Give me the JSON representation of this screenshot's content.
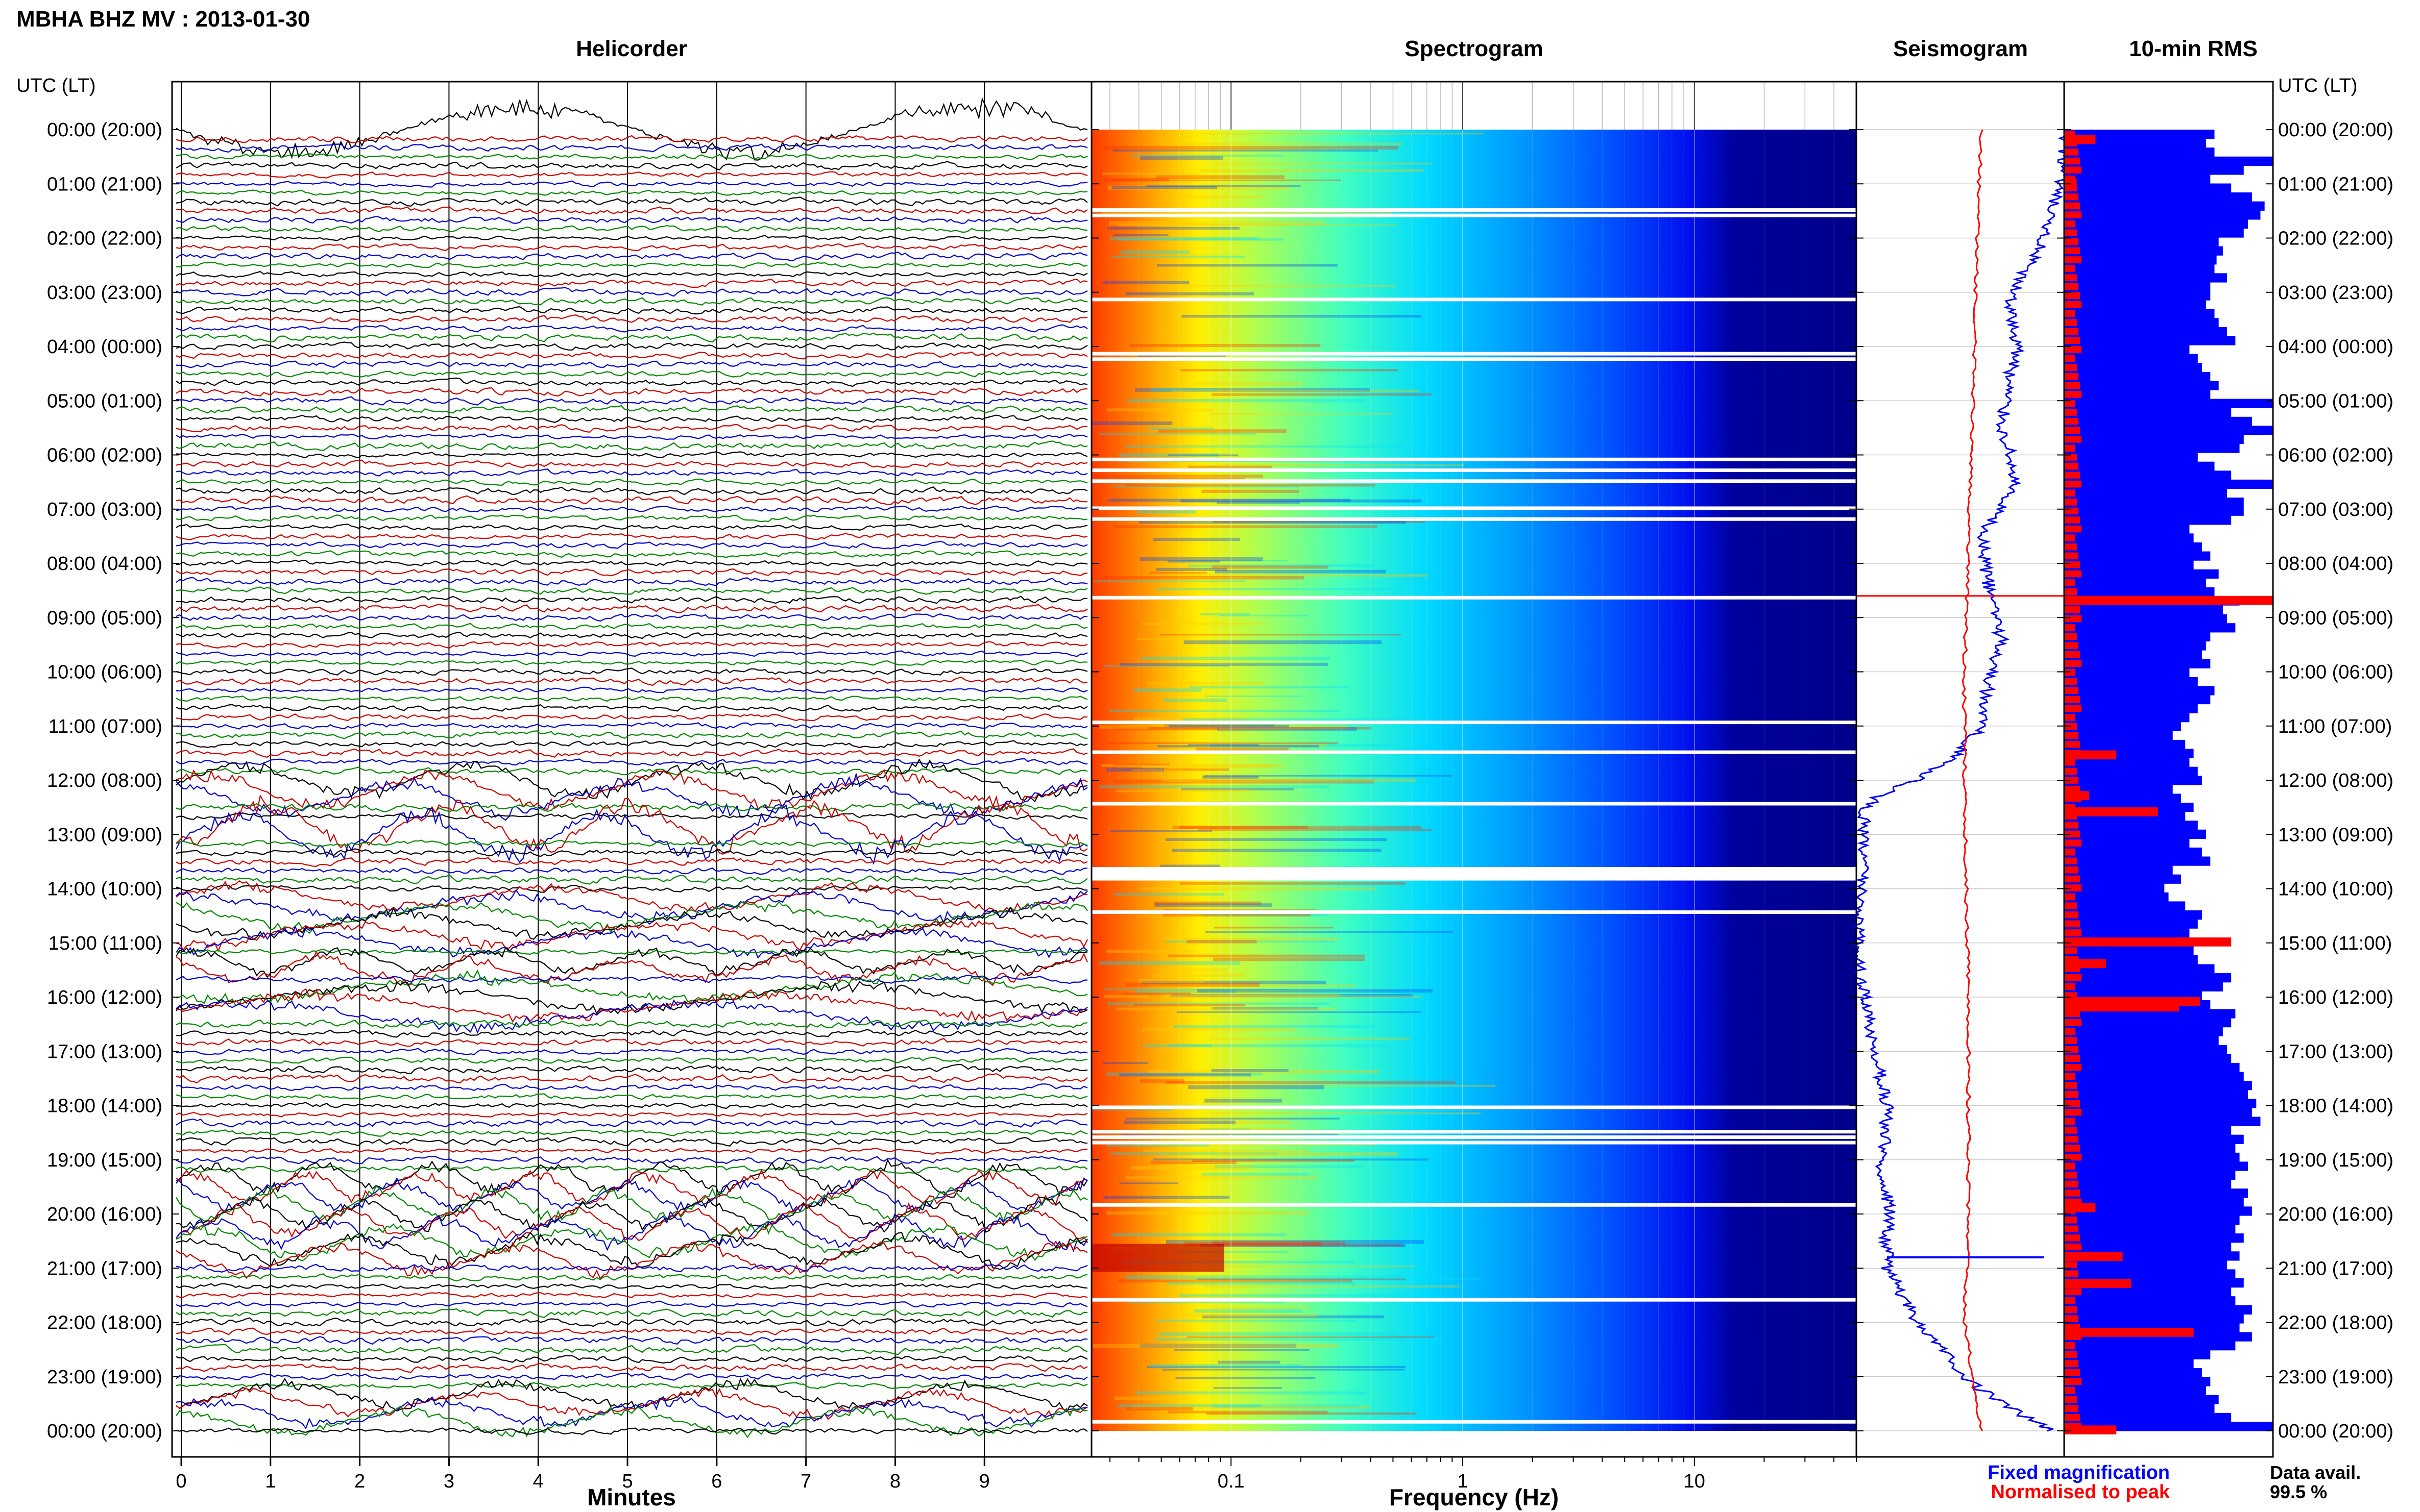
{
  "title": "MBHA BHZ MV : 2013-01-30",
  "panels": {
    "helicorder": "Helicorder",
    "spectrogram": "Spectrogram",
    "seismogram": "Seismogram",
    "rms": "10-min RMS"
  },
  "axis_title_left": "UTC (LT)",
  "axis_title_right": "UTC (LT)",
  "time_labels": [
    "00:00 (20:00)",
    "01:00 (21:00)",
    "02:00 (22:00)",
    "03:00 (23:00)",
    "04:00 (00:00)",
    "05:00 (01:00)",
    "06:00 (02:00)",
    "07:00 (03:00)",
    "08:00 (04:00)",
    "09:00 (05:00)",
    "10:00 (06:00)",
    "11:00 (07:00)",
    "12:00 (08:00)",
    "13:00 (09:00)",
    "14:00 (10:00)",
    "15:00 (11:00)",
    "16:00 (12:00)",
    "17:00 (13:00)",
    "18:00 (14:00)",
    "19:00 (15:00)",
    "20:00 (16:00)",
    "21:00 (17:00)",
    "22:00 (18:00)",
    "23:00 (19:00)",
    "00:00 (20:00)"
  ],
  "helicorder_xlabel": "Minutes",
  "spectrogram_xlabel": "Frequency (Hz)",
  "legend": {
    "fixed": "Fixed magnification",
    "normalised": "Normalised to peak",
    "avail_label": "Data avail.",
    "avail_value": "99.5 %"
  },
  "colors": {
    "trace_cycle": [
      "#000000",
      "#cc0000",
      "#0000cc",
      "#008800"
    ],
    "fixed": "#0000ff",
    "normalised": "#ff0000",
    "spec_background": "#00007f"
  },
  "chart_data": [
    {
      "type": "line",
      "name": "helicorder",
      "title": "Helicorder",
      "xlabel": "Minutes",
      "x_ticks": [
        0,
        1,
        2,
        3,
        4,
        5,
        6,
        7,
        8,
        9
      ],
      "xlim": [
        0,
        10
      ],
      "rows_per_hour": 6,
      "hours": 24,
      "notable_events_utc": [
        "00:10",
        "12:00",
        "13:00",
        "14:40",
        "15:20",
        "16:20",
        "20:00",
        "20:40",
        "23:40"
      ]
    },
    {
      "type": "heatmap",
      "name": "spectrogram",
      "title": "Spectrogram",
      "xlabel": "Frequency (Hz)",
      "x_scale": "log",
      "x_ticks": [
        0.1,
        1,
        10
      ],
      "xlim": [
        0.025,
        50
      ],
      "gaps_utc_hours": [
        1.45,
        1.55,
        3.1,
        4.1,
        4.2,
        6.05,
        6.25,
        6.45,
        6.95,
        7.15,
        8.6,
        10.9,
        11.45,
        12.4,
        13.6,
        13.75,
        14.4,
        18.0,
        18.45,
        18.55,
        18.65,
        19.8,
        21.55,
        23.8
      ],
      "gap_large_utc": [
        13.6,
        13.85
      ]
    },
    {
      "type": "line",
      "name": "seismogram",
      "title": "Seismogram",
      "series": [
        {
          "name": "Fixed magnification",
          "color": "#0000ff",
          "times_h": [
            0,
            0.5,
            1,
            1.3,
            1.6,
            2,
            2.3,
            2.6,
            3,
            3.5,
            4,
            4.5,
            5,
            5.5,
            6,
            6.5,
            7,
            7.5,
            8,
            8.5,
            9,
            9.5,
            10,
            10.5,
            11,
            11.5,
            12,
            12.3,
            12.6,
            13,
            13.5,
            14,
            14.5,
            15,
            15.5,
            16,
            16.5,
            17,
            17.5,
            18,
            18.5,
            19,
            19.5,
            20,
            20.5,
            21,
            21.5,
            22,
            22.5,
            23,
            23.5,
            24
          ],
          "values": [
            0.0,
            0.0,
            0.03,
            0.05,
            0.08,
            0.1,
            0.14,
            0.2,
            0.25,
            0.26,
            0.22,
            0.26,
            0.28,
            0.3,
            0.26,
            0.24,
            0.32,
            0.4,
            0.38,
            0.36,
            0.32,
            0.3,
            0.35,
            0.38,
            0.4,
            0.5,
            0.72,
            0.9,
            0.97,
            0.96,
            0.97,
            0.97,
            0.98,
            0.99,
            0.98,
            0.96,
            0.94,
            0.93,
            0.88,
            0.85,
            0.86,
            0.88,
            0.86,
            0.84,
            0.86,
            0.85,
            0.78,
            0.7,
            0.58,
            0.48,
            0.3,
            0.06
          ]
        },
        {
          "name": "Normalised to peak",
          "color": "#ff0000",
          "times_h": [
            0,
            2,
            4,
            6,
            8,
            10,
            12,
            14,
            16,
            18,
            20,
            22,
            24
          ],
          "values": [
            0.4,
            0.42,
            0.43,
            0.45,
            0.46,
            0.48,
            0.48,
            0.47,
            0.46,
            0.46,
            0.46,
            0.48,
            0.4
          ]
        }
      ]
    },
    {
      "type": "bar",
      "name": "rms",
      "title": "10-min RMS",
      "note": "per-10-min RMS amplitude relative to panel width",
      "series": [
        {
          "name": "Fixed magnification",
          "color": "#0000ff",
          "values": [
            0.72,
            0.68,
            0.72,
            1.0,
            0.86,
            0.7,
            0.8,
            0.9,
            0.96,
            0.94,
            0.88,
            0.86,
            0.74,
            0.76,
            0.73,
            0.72,
            0.78,
            0.7,
            0.7,
            0.68,
            0.72,
            0.74,
            0.78,
            0.82,
            0.6,
            0.64,
            0.66,
            0.7,
            0.74,
            0.7,
            1.0,
            0.8,
            0.9,
            1.0,
            0.86,
            0.84,
            0.64,
            0.72,
            0.8,
            1.0,
            0.78,
            0.86,
            0.86,
            0.8,
            0.6,
            0.62,
            0.66,
            0.7,
            0.62,
            0.74,
            0.68,
            0.72,
            0.84,
            0.76,
            0.78,
            0.82,
            0.7,
            0.68,
            0.66,
            0.7,
            0.6,
            0.64,
            0.72,
            0.7,
            0.64,
            0.6,
            0.56,
            0.52,
            0.58,
            0.62,
            0.6,
            0.64,
            0.66,
            0.52,
            0.56,
            0.62,
            0.58,
            0.64,
            0.68,
            0.6,
            0.66,
            0.7,
            0.52,
            0.56,
            0.48,
            0.5,
            0.58,
            0.66,
            0.64,
            0.6,
            0.55,
            0.62,
            0.64,
            0.72,
            0.8,
            0.76,
            0.66,
            0.7,
            0.82,
            0.8,
            0.76,
            0.74,
            0.78,
            0.8,
            0.84,
            0.86,
            0.9,
            0.88,
            0.92,
            0.9,
            0.94,
            0.8,
            0.86,
            0.82,
            0.84,
            0.88,
            0.82,
            0.8,
            0.88,
            0.86,
            0.9,
            0.84,
            0.82,
            0.86,
            0.8,
            0.84,
            0.78,
            0.82,
            0.86,
            0.8,
            0.82,
            0.9,
            0.86,
            0.84,
            0.9,
            0.82,
            0.7,
            0.62,
            0.66,
            0.7,
            0.68,
            0.74,
            0.72,
            0.8,
            1.0
          ]
        },
        {
          "name": "Normalised to peak",
          "color": "#ff0000",
          "highlights": [
            [
              0.1,
              0.15
            ],
            [
              0.9,
              0.06
            ],
            [
              8.6,
              1.0
            ],
            [
              11.45,
              0.25
            ],
            [
              12.2,
              0.12
            ],
            [
              12.5,
              0.45
            ],
            [
              14.9,
              0.8
            ],
            [
              15.3,
              0.2
            ],
            [
              16.0,
              0.65
            ],
            [
              16.1,
              0.55
            ],
            [
              19.8,
              0.15
            ],
            [
              20.7,
              0.28
            ],
            [
              21.2,
              0.32
            ],
            [
              22.1,
              0.62
            ],
            [
              23.9,
              0.25
            ]
          ]
        }
      ]
    }
  ]
}
